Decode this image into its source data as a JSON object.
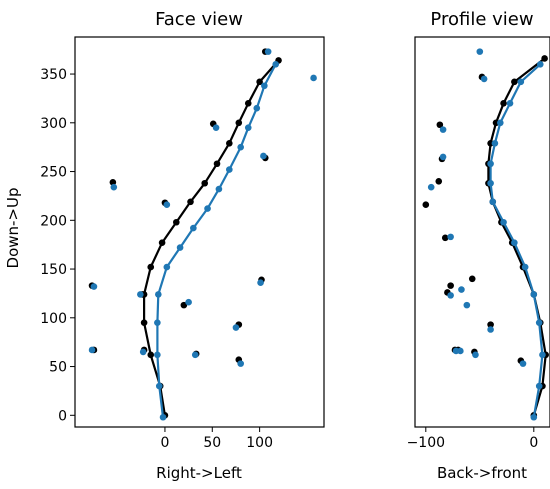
{
  "chart_data": [
    {
      "type": "scatter",
      "title": "Face view",
      "xlabel": "Right->Left",
      "ylabel": "Down->Up",
      "xlim": [
        -95,
        168
      ],
      "ylim": [
        -12,
        388
      ],
      "xticks": [
        0,
        50,
        100
      ],
      "yticks": [
        0,
        50,
        100,
        150,
        200,
        250,
        300,
        350
      ],
      "grid": false,
      "series": [
        {
          "color": "#000000",
          "line": [
            [
              0,
              0
            ],
            [
              -5,
              30
            ],
            [
              -15,
              62
            ],
            [
              -22,
              95
            ],
            [
              -22,
              124
            ],
            [
              -15,
              152
            ],
            [
              -3,
              177
            ],
            [
              12,
              198
            ],
            [
              27,
              219
            ],
            [
              42,
              238
            ],
            [
              55,
              258
            ],
            [
              68,
              279
            ],
            [
              78,
              300
            ],
            [
              88,
              320
            ],
            [
              100,
              342
            ],
            [
              120,
              364
            ]
          ],
          "points": [
            [
              -75,
              67
            ],
            [
              -22,
              67
            ],
            [
              -24,
              124
            ],
            [
              -77,
              133
            ],
            [
              -55,
              239
            ],
            [
              0,
              218
            ],
            [
              20,
              113
            ],
            [
              33,
              63
            ],
            [
              78,
              57
            ],
            [
              78,
              93
            ],
            [
              102,
              139
            ],
            [
              106,
              264
            ],
            [
              51,
              299
            ],
            [
              106,
              373
            ]
          ]
        },
        {
          "color": "#1f77b4",
          "line": [
            [
              -2,
              -2
            ],
            [
              -6,
              30
            ],
            [
              -8,
              62
            ],
            [
              -8,
              95
            ],
            [
              -7,
              124
            ],
            [
              2,
              152
            ],
            [
              16,
              172
            ],
            [
              30,
              192
            ],
            [
              45,
              212
            ],
            [
              57,
              232
            ],
            [
              68,
              252
            ],
            [
              80,
              275
            ],
            [
              88,
              295
            ],
            [
              97,
              315
            ],
            [
              105,
              338
            ],
            [
              117,
              360
            ]
          ],
          "points": [
            [
              -77,
              67
            ],
            [
              -23,
              65
            ],
            [
              -26,
              124
            ],
            [
              -75,
              132
            ],
            [
              -54,
              234
            ],
            [
              2,
              216
            ],
            [
              25,
              116
            ],
            [
              32,
              62
            ],
            [
              80,
              53
            ],
            [
              75,
              90
            ],
            [
              101,
              136
            ],
            [
              104,
              266
            ],
            [
              54,
              295
            ],
            [
              109,
              373
            ],
            [
              157,
              346
            ]
          ]
        }
      ]
    },
    {
      "type": "scatter",
      "title": "Profile view",
      "xlabel": "Back->front",
      "ylabel": "",
      "xlim": [
        -110,
        15
      ],
      "ylim": [
        -12,
        388
      ],
      "xticks": [
        -100,
        0
      ],
      "yticks": [],
      "grid": false,
      "series": [
        {
          "color": "#000000",
          "line": [
            [
              0,
              0
            ],
            [
              8,
              30
            ],
            [
              11,
              62
            ],
            [
              6,
              95
            ],
            [
              0,
              124
            ],
            [
              -10,
              152
            ],
            [
              -20,
              177
            ],
            [
              -30,
              198
            ],
            [
              -38,
              219
            ],
            [
              -42,
              238
            ],
            [
              -42,
              258
            ],
            [
              -40,
              279
            ],
            [
              -35,
              300
            ],
            [
              -28,
              320
            ],
            [
              -18,
              342
            ],
            [
              10,
              366
            ]
          ],
          "points": [
            [
              -100,
              216
            ],
            [
              -88,
              240
            ],
            [
              -85,
              263
            ],
            [
              -87,
              298
            ],
            [
              -82,
              182
            ],
            [
              -77,
              133
            ],
            [
              -57,
              140
            ],
            [
              -73,
              67
            ],
            [
              -70,
              67
            ],
            [
              -55,
              65
            ],
            [
              -48,
              347
            ],
            [
              -40,
              93
            ],
            [
              -12,
              56
            ],
            [
              -80,
              126
            ]
          ]
        },
        {
          "color": "#1f77b4",
          "line": [
            [
              0,
              -2
            ],
            [
              5,
              30
            ],
            [
              8,
              62
            ],
            [
              5,
              95
            ],
            [
              0,
              124
            ],
            [
              -8,
              152
            ],
            [
              -18,
              177
            ],
            [
              -28,
              198
            ],
            [
              -38,
              219
            ],
            [
              -40,
              238
            ],
            [
              -40,
              258
            ],
            [
              -36,
              279
            ],
            [
              -31,
              300
            ],
            [
              -22,
              320
            ],
            [
              -12,
              342
            ],
            [
              6,
              360
            ]
          ],
          "points": [
            [
              -95,
              234
            ],
            [
              -84,
              265
            ],
            [
              -84,
              293
            ],
            [
              -77,
              183
            ],
            [
              -67,
              129
            ],
            [
              -62,
              113
            ],
            [
              -72,
              66
            ],
            [
              -68,
              66
            ],
            [
              -54,
              62
            ],
            [
              -46,
              345
            ],
            [
              -50,
              373
            ],
            [
              -40,
              88
            ],
            [
              -10,
              53
            ],
            [
              -77,
              123
            ]
          ]
        }
      ]
    }
  ]
}
